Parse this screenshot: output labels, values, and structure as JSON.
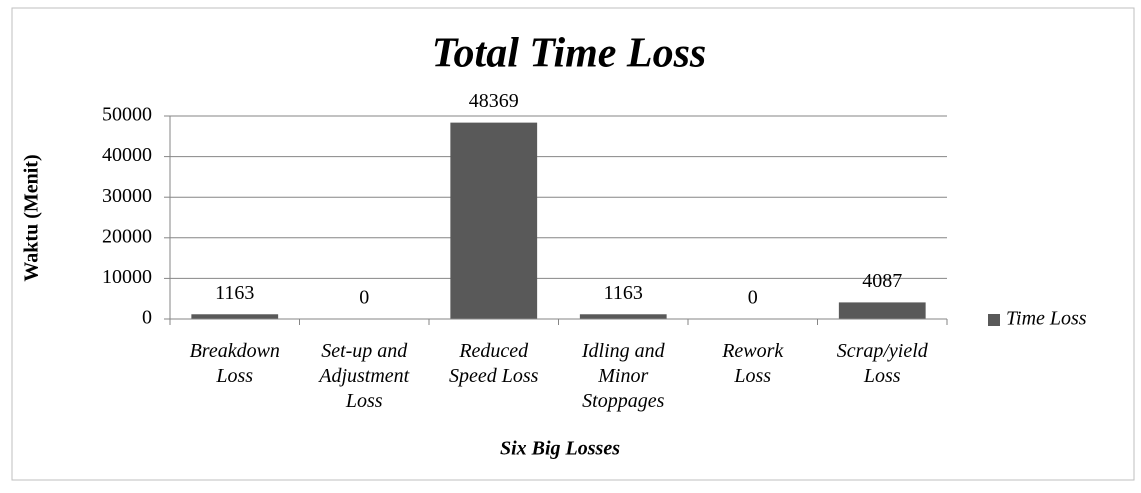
{
  "chart_data": {
    "type": "bar",
    "title": "Total Time Loss",
    "y_label": "Waktu (Menit)",
    "x_label": "Six Big Losses",
    "categories": [
      "Breakdown\nLoss",
      "Set-up and\nAdjustment\nLoss",
      "Reduced\nSpeed Loss",
      "Idling and\nMinor\nStoppages",
      "Rework\nLoss",
      "Scrap/yield\nLoss"
    ],
    "series": [
      {
        "name": "Time Loss",
        "color": "#595959",
        "values": [
          1163,
          0,
          48369,
          1163,
          0,
          4087
        ]
      }
    ],
    "ylim": [
      0,
      50000
    ],
    "yticks": [
      0,
      10000,
      20000,
      30000,
      40000,
      50000
    ],
    "grid": true,
    "legend": "right"
  }
}
